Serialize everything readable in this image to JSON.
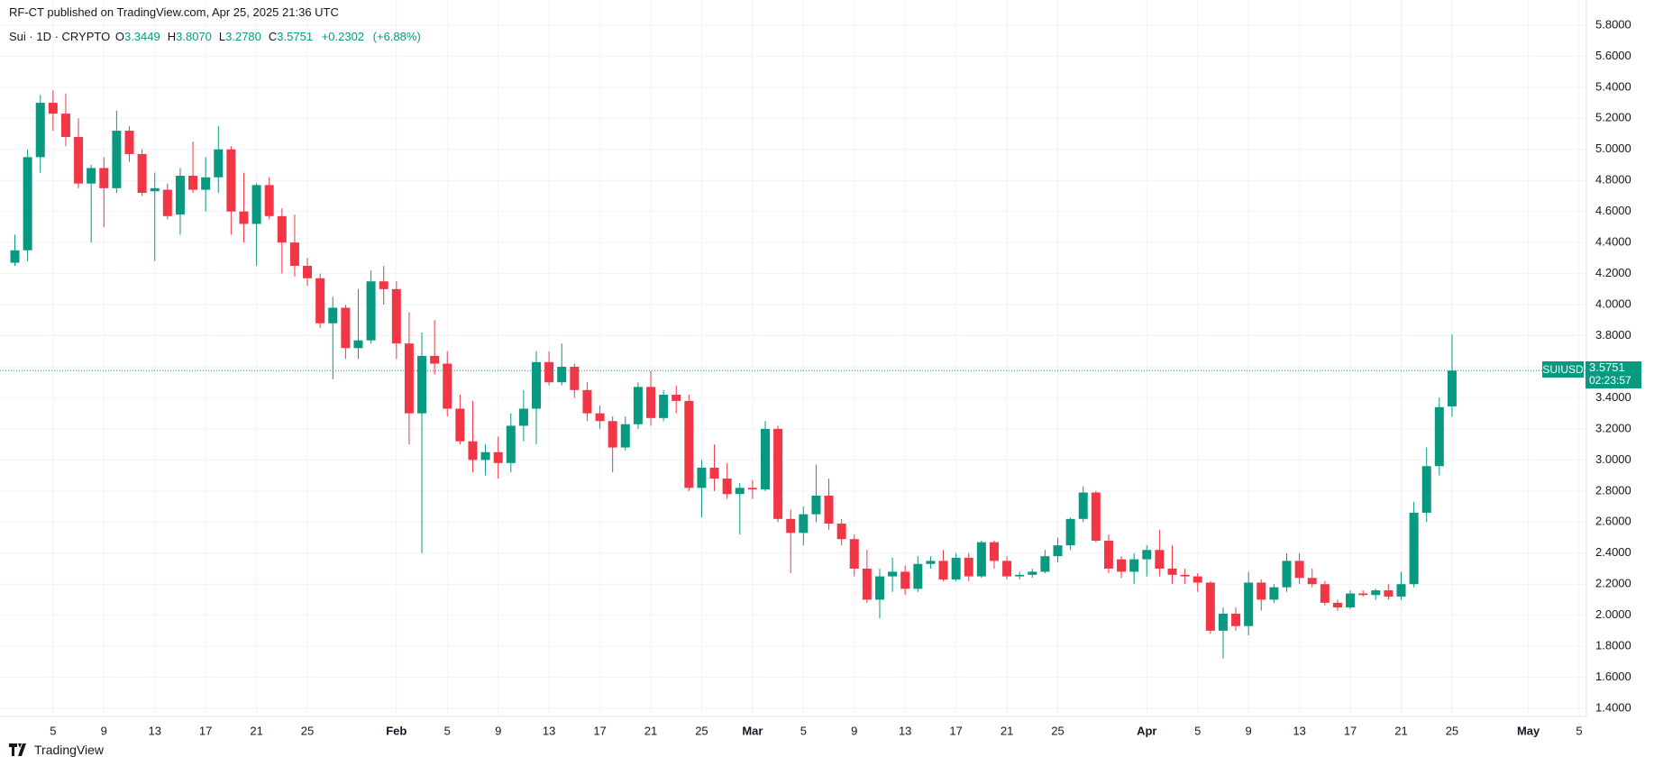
{
  "header": {
    "published": "RF-CT published on TradingView.com, Apr 25, 2025 21:36 UTC"
  },
  "legend": {
    "symbol": "Sui · 1D · CRYPTO",
    "ohlc": [
      {
        "key": "O",
        "value": 3.3449,
        "label": "3.3449"
      },
      {
        "key": "H",
        "value": 3.807,
        "label": "3.8070"
      },
      {
        "key": "L",
        "value": 3.278,
        "label": "3.2780"
      },
      {
        "key": "C",
        "value": 3.5751,
        "label": "3.5751"
      }
    ],
    "change": {
      "value": 0.2302,
      "label": "+0.2302"
    },
    "change_pct": {
      "value": 6.88,
      "label": "(+6.88%)"
    }
  },
  "price_tag": {
    "ticker": "SUIUSD",
    "price": {
      "value": 3.5751,
      "label": "3.5751"
    },
    "countdown": "02:23:57"
  },
  "footer": {
    "brand": "TradingView"
  },
  "chart_data": {
    "type": "candlestick",
    "up_color": "#089981",
    "down_color": "#f23645",
    "grid": true,
    "x": [
      "Jan 2",
      "Jan 3",
      "Jan 4",
      "Jan 5",
      "Jan 6",
      "Jan 7",
      "Jan 8",
      "Jan 9",
      "Jan 10",
      "Jan 11",
      "Jan 12",
      "Jan 13",
      "Jan 14",
      "Jan 15",
      "Jan 16",
      "Jan 17",
      "Jan 18",
      "Jan 19",
      "Jan 20",
      "Jan 21",
      "Jan 22",
      "Jan 23",
      "Jan 24",
      "Jan 25",
      "Jan 26",
      "Jan 27",
      "Jan 28",
      "Jan 29",
      "Jan 30",
      "Jan 31",
      "Feb 1",
      "Feb 2",
      "Feb 3",
      "Feb 4",
      "Feb 5",
      "Feb 6",
      "Feb 7",
      "Feb 8",
      "Feb 9",
      "Feb 10",
      "Feb 11",
      "Feb 12",
      "Feb 13",
      "Feb 14",
      "Feb 15",
      "Feb 16",
      "Feb 17",
      "Feb 18",
      "Feb 19",
      "Feb 20",
      "Feb 21",
      "Feb 22",
      "Feb 23",
      "Feb 24",
      "Feb 25",
      "Feb 26",
      "Feb 27",
      "Feb 28",
      "Mar 1",
      "Mar 2",
      "Mar 3",
      "Mar 4",
      "Mar 5",
      "Mar 6",
      "Mar 7",
      "Mar 8",
      "Mar 9",
      "Mar 10",
      "Mar 11",
      "Mar 12",
      "Mar 13",
      "Mar 14",
      "Mar 15",
      "Mar 16",
      "Mar 17",
      "Mar 18",
      "Mar 19",
      "Mar 20",
      "Mar 21",
      "Mar 22",
      "Mar 23",
      "Mar 24",
      "Mar 25",
      "Mar 26",
      "Mar 27",
      "Mar 28",
      "Mar 29",
      "Mar 30",
      "Mar 31",
      "Apr 1",
      "Apr 2",
      "Apr 3",
      "Apr 4",
      "Apr 5",
      "Apr 6",
      "Apr 7",
      "Apr 8",
      "Apr 9",
      "Apr 10",
      "Apr 11",
      "Apr 12",
      "Apr 13",
      "Apr 14",
      "Apr 15",
      "Apr 16",
      "Apr 17",
      "Apr 18",
      "Apr 19",
      "Apr 20",
      "Apr 21",
      "Apr 22",
      "Apr 23",
      "Apr 24",
      "Apr 25"
    ],
    "open": [
      4.27,
      4.35,
      4.95,
      5.3,
      5.23,
      5.08,
      4.78,
      4.88,
      4.75,
      5.12,
      4.97,
      4.73,
      4.74,
      4.58,
      4.83,
      4.74,
      4.82,
      5.0,
      4.6,
      4.52,
      4.77,
      4.57,
      4.4,
      4.25,
      4.17,
      3.88,
      3.98,
      3.72,
      3.77,
      4.15,
      4.1,
      3.75,
      3.3,
      3.67,
      3.62,
      3.33,
      3.12,
      3.0,
      3.05,
      2.98,
      3.22,
      3.33,
      3.63,
      3.5,
      3.6,
      3.45,
      3.3,
      3.25,
      3.08,
      3.23,
      3.47,
      3.27,
      3.42,
      3.38,
      2.82,
      2.95,
      2.88,
      2.78,
      2.82,
      2.81,
      3.2,
      2.62,
      2.53,
      2.65,
      2.77,
      2.59,
      2.49,
      2.3,
      2.1,
      2.25,
      2.28,
      2.17,
      2.33,
      2.35,
      2.23,
      2.37,
      2.25,
      2.47,
      2.35,
      2.25,
      2.26,
      2.28,
      2.38,
      2.45,
      2.62,
      2.79,
      2.48,
      2.36,
      2.28,
      2.36,
      2.42,
      2.3,
      2.26,
      2.25,
      2.21,
      1.9,
      2.01,
      1.93,
      2.21,
      2.1,
      2.18,
      2.35,
      2.24,
      2.2,
      2.08,
      2.05,
      2.14,
      2.13,
      2.16,
      2.12,
      2.2,
      2.66,
      2.96,
      3.3449
    ],
    "high": [
      4.45,
      5.0,
      5.35,
      5.38,
      5.36,
      5.2,
      4.9,
      4.95,
      5.25,
      5.15,
      5.0,
      4.85,
      4.78,
      4.88,
      5.05,
      4.95,
      5.15,
      5.02,
      4.85,
      4.78,
      4.82,
      4.62,
      4.58,
      4.3,
      4.2,
      4.05,
      4.0,
      4.1,
      4.22,
      4.25,
      4.15,
      3.95,
      3.82,
      3.9,
      3.7,
      3.42,
      3.38,
      3.1,
      3.15,
      3.3,
      3.45,
      3.7,
      3.7,
      3.75,
      3.62,
      3.5,
      3.35,
      3.28,
      3.28,
      3.5,
      3.57,
      3.45,
      3.48,
      3.42,
      3.0,
      3.1,
      2.98,
      2.85,
      2.87,
      3.25,
      3.22,
      2.68,
      2.7,
      2.97,
      2.88,
      2.62,
      2.52,
      2.42,
      2.3,
      2.37,
      2.32,
      2.38,
      2.38,
      2.42,
      2.4,
      2.4,
      2.48,
      2.48,
      2.38,
      2.28,
      2.3,
      2.42,
      2.5,
      2.63,
      2.83,
      2.8,
      2.52,
      2.38,
      2.4,
      2.45,
      2.55,
      2.45,
      2.3,
      2.27,
      2.22,
      2.05,
      2.05,
      2.28,
      2.23,
      2.2,
      2.4,
      2.4,
      2.3,
      2.22,
      2.1,
      2.16,
      2.16,
      2.17,
      2.2,
      2.28,
      2.73,
      3.08,
      3.4,
      3.807
    ],
    "low": [
      4.25,
      4.28,
      4.85,
      5.12,
      5.02,
      4.75,
      4.4,
      4.5,
      4.72,
      4.92,
      4.7,
      4.28,
      4.55,
      4.45,
      4.72,
      4.6,
      4.72,
      4.45,
      4.4,
      4.25,
      4.55,
      4.2,
      4.18,
      4.12,
      3.85,
      3.52,
      3.65,
      3.65,
      3.75,
      4.0,
      3.65,
      3.1,
      2.4,
      3.55,
      3.28,
      3.1,
      2.92,
      2.9,
      2.88,
      2.92,
      3.12,
      3.1,
      3.48,
      3.48,
      3.4,
      3.25,
      3.2,
      2.92,
      3.06,
      3.2,
      3.22,
      3.25,
      3.3,
      2.8,
      2.63,
      2.8,
      2.75,
      2.52,
      2.75,
      2.8,
      2.6,
      2.27,
      2.45,
      2.6,
      2.55,
      2.45,
      2.25,
      2.08,
      1.98,
      2.15,
      2.13,
      2.15,
      2.3,
      2.22,
      2.22,
      2.22,
      2.24,
      2.3,
      2.23,
      2.23,
      2.24,
      2.27,
      2.34,
      2.42,
      2.6,
      2.47,
      2.27,
      2.24,
      2.2,
      2.25,
      2.25,
      2.2,
      2.2,
      2.15,
      1.88,
      1.72,
      1.9,
      1.87,
      2.03,
      2.08,
      2.15,
      2.2,
      2.18,
      2.06,
      2.03,
      2.04,
      2.12,
      2.1,
      2.1,
      2.1,
      2.18,
      2.6,
      2.9,
      3.278
    ],
    "close": [
      4.35,
      4.95,
      5.3,
      5.23,
      5.08,
      4.78,
      4.88,
      4.75,
      5.12,
      4.97,
      4.72,
      4.75,
      4.57,
      4.83,
      4.74,
      4.82,
      5.0,
      4.6,
      4.52,
      4.77,
      4.57,
      4.4,
      4.25,
      4.17,
      3.88,
      3.98,
      3.72,
      3.77,
      4.15,
      4.1,
      3.75,
      3.3,
      3.67,
      3.62,
      3.33,
      3.12,
      3.0,
      3.05,
      2.98,
      3.22,
      3.33,
      3.63,
      3.5,
      3.6,
      3.45,
      3.3,
      3.25,
      3.08,
      3.23,
      3.47,
      3.27,
      3.42,
      3.38,
      2.82,
      2.95,
      2.88,
      2.78,
      2.82,
      2.81,
      3.2,
      2.62,
      2.53,
      2.65,
      2.77,
      2.59,
      2.49,
      2.3,
      2.1,
      2.25,
      2.28,
      2.17,
      2.33,
      2.35,
      2.23,
      2.37,
      2.25,
      2.47,
      2.35,
      2.25,
      2.26,
      2.28,
      2.38,
      2.45,
      2.62,
      2.79,
      2.48,
      2.3,
      2.28,
      2.36,
      2.42,
      2.3,
      2.26,
      2.25,
      2.21,
      1.9,
      2.01,
      1.93,
      2.21,
      2.1,
      2.18,
      2.35,
      2.24,
      2.2,
      2.08,
      2.05,
      2.14,
      2.13,
      2.16,
      2.12,
      2.2,
      2.66,
      2.96,
      3.34,
      3.5751
    ],
    "ylim": [
      1.348,
      5.962
    ],
    "yticks": [
      {
        "value": 1.4,
        "label": "1.4000"
      },
      {
        "value": 1.6,
        "label": "1.6000"
      },
      {
        "value": 1.8,
        "label": "1.8000"
      },
      {
        "value": 2.0,
        "label": "2.0000"
      },
      {
        "value": 2.2,
        "label": "2.2000"
      },
      {
        "value": 2.4,
        "label": "2.4000"
      },
      {
        "value": 2.6,
        "label": "2.6000"
      },
      {
        "value": 2.8,
        "label": "2.8000"
      },
      {
        "value": 3.0,
        "label": "3.0000"
      },
      {
        "value": 3.2,
        "label": "3.2000"
      },
      {
        "value": 3.4,
        "label": "3.4000"
      },
      {
        "value": 3.6,
        "label": "3.6000"
      },
      {
        "value": 3.8,
        "label": "3.8000"
      },
      {
        "value": 4.0,
        "label": "4.0000"
      },
      {
        "value": 4.2,
        "label": "4.2000"
      },
      {
        "value": 4.4,
        "label": "4.4000"
      },
      {
        "value": 4.6,
        "label": "4.6000"
      },
      {
        "value": 4.8,
        "label": "4.8000"
      },
      {
        "value": 5.0,
        "label": "5.0000"
      },
      {
        "value": 5.2,
        "label": "5.2000"
      },
      {
        "value": 5.4,
        "label": "5.4000"
      },
      {
        "value": 5.6,
        "label": "5.6000"
      },
      {
        "value": 5.8,
        "label": "5.8000"
      }
    ],
    "xticks": [
      {
        "value": "Jan 5",
        "label": "5"
      },
      {
        "value": "Jan 9",
        "label": "9"
      },
      {
        "value": "Jan 13",
        "label": "13"
      },
      {
        "value": "Jan 17",
        "label": "17"
      },
      {
        "value": "Jan 21",
        "label": "21"
      },
      {
        "value": "Jan 25",
        "label": "25"
      },
      {
        "value": "Feb 1",
        "label": "Feb"
      },
      {
        "value": "Feb 5",
        "label": "5"
      },
      {
        "value": "Feb 9",
        "label": "9"
      },
      {
        "value": "Feb 13",
        "label": "13"
      },
      {
        "value": "Feb 17",
        "label": "17"
      },
      {
        "value": "Feb 21",
        "label": "21"
      },
      {
        "value": "Feb 25",
        "label": "25"
      },
      {
        "value": "Mar 1",
        "label": "Mar"
      },
      {
        "value": "Mar 5",
        "label": "5"
      },
      {
        "value": "Mar 9",
        "label": "9"
      },
      {
        "value": "Mar 13",
        "label": "13"
      },
      {
        "value": "Mar 17",
        "label": "17"
      },
      {
        "value": "Mar 21",
        "label": "21"
      },
      {
        "value": "Mar 25",
        "label": "25"
      },
      {
        "value": "Apr 1",
        "label": "Apr"
      },
      {
        "value": "Apr 5",
        "label": "5"
      },
      {
        "value": "Apr 9",
        "label": "9"
      },
      {
        "value": "Apr 13",
        "label": "13"
      },
      {
        "value": "Apr 17",
        "label": "17"
      },
      {
        "value": "Apr 21",
        "label": "21"
      },
      {
        "value": "Apr 25",
        "label": "25"
      },
      {
        "value": "May 1",
        "label": "May"
      },
      {
        "value": "May 5",
        "label": "5"
      }
    ]
  }
}
